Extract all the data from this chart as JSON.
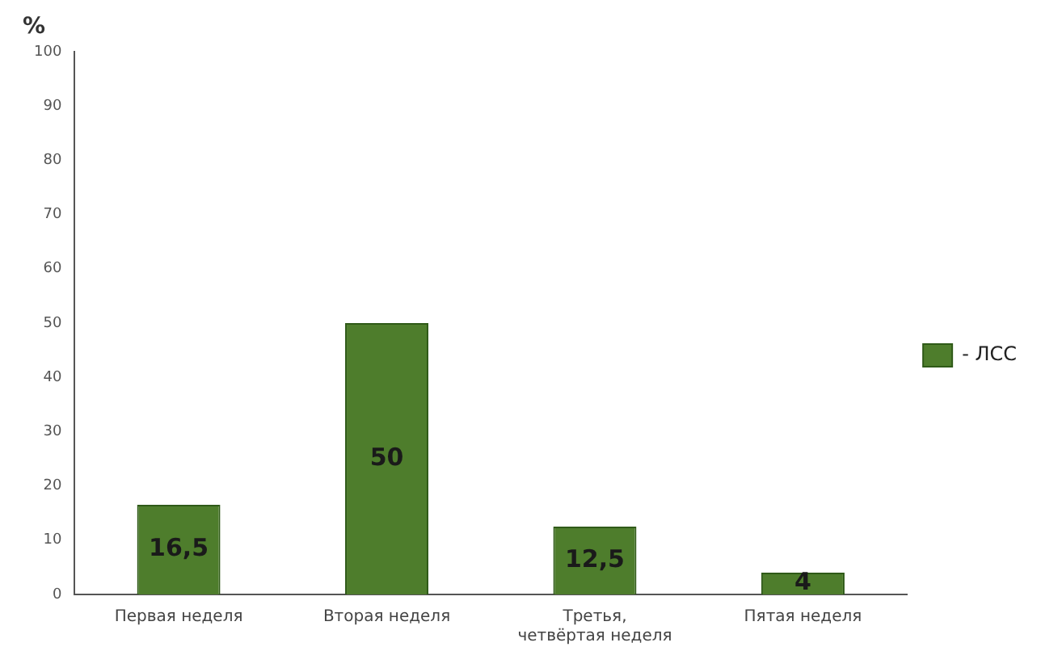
{
  "chart_data": {
    "type": "bar",
    "ylabel": "%",
    "categories": [
      "Первая неделя",
      "Вторая неделя",
      "Третья, четвёртая неделя",
      "Пятая неделя"
    ],
    "series": [
      {
        "name": "- ЛСС",
        "color": "#4e7d2c",
        "values": [
          16.5,
          50,
          12.5,
          4
        ],
        "value_labels": [
          "16,5",
          "50",
          "12,5",
          "4"
        ]
      }
    ],
    "ylim": [
      0,
      100
    ],
    "yticks": [
      0,
      10,
      20,
      30,
      40,
      50,
      60,
      70,
      80,
      90,
      100
    ],
    "legend": "right",
    "grid": false
  }
}
